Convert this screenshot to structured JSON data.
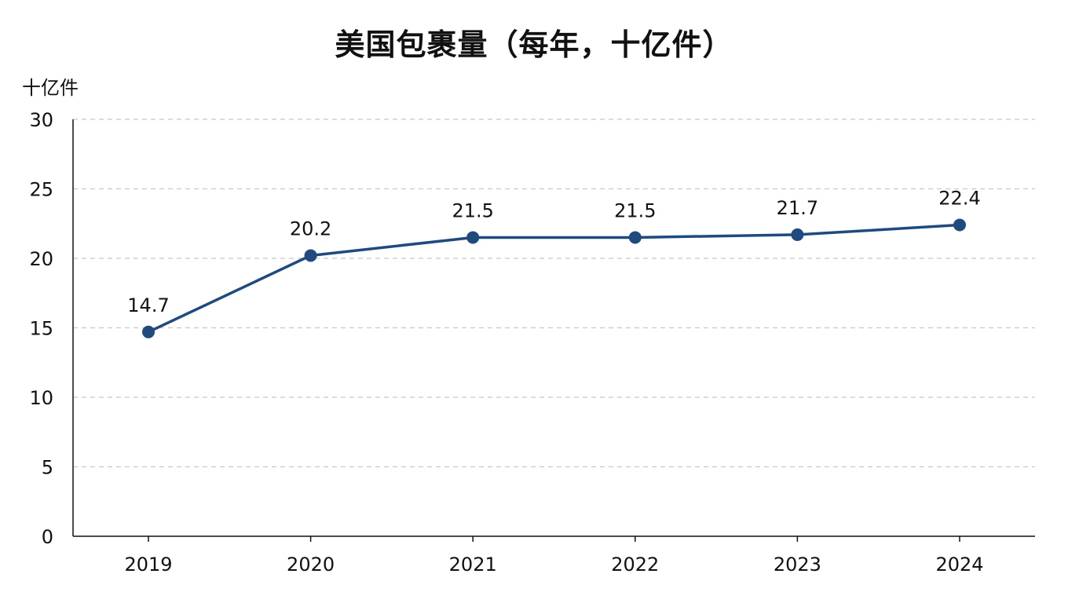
{
  "chart_data": {
    "type": "line",
    "title": "美国包裹量（每年，十亿件）",
    "ylabel": "十亿件",
    "xlabel": "",
    "categories": [
      "2019",
      "2020",
      "2021",
      "2022",
      "2023",
      "2024"
    ],
    "series": [
      {
        "values": [
          14.7,
          20.2,
          21.5,
          21.5,
          21.7,
          22.4
        ],
        "labels": [
          "14.7",
          "20.2",
          "21.5",
          "21.5",
          "21.7",
          "22.4"
        ],
        "color": "#1f4a7d"
      }
    ],
    "ylim": [
      0,
      30
    ],
    "yticks": [
      "0",
      "5",
      "10",
      "15",
      "20",
      "25",
      "30"
    ],
    "grid": true,
    "grid_style": "dashed",
    "legend": "none"
  }
}
